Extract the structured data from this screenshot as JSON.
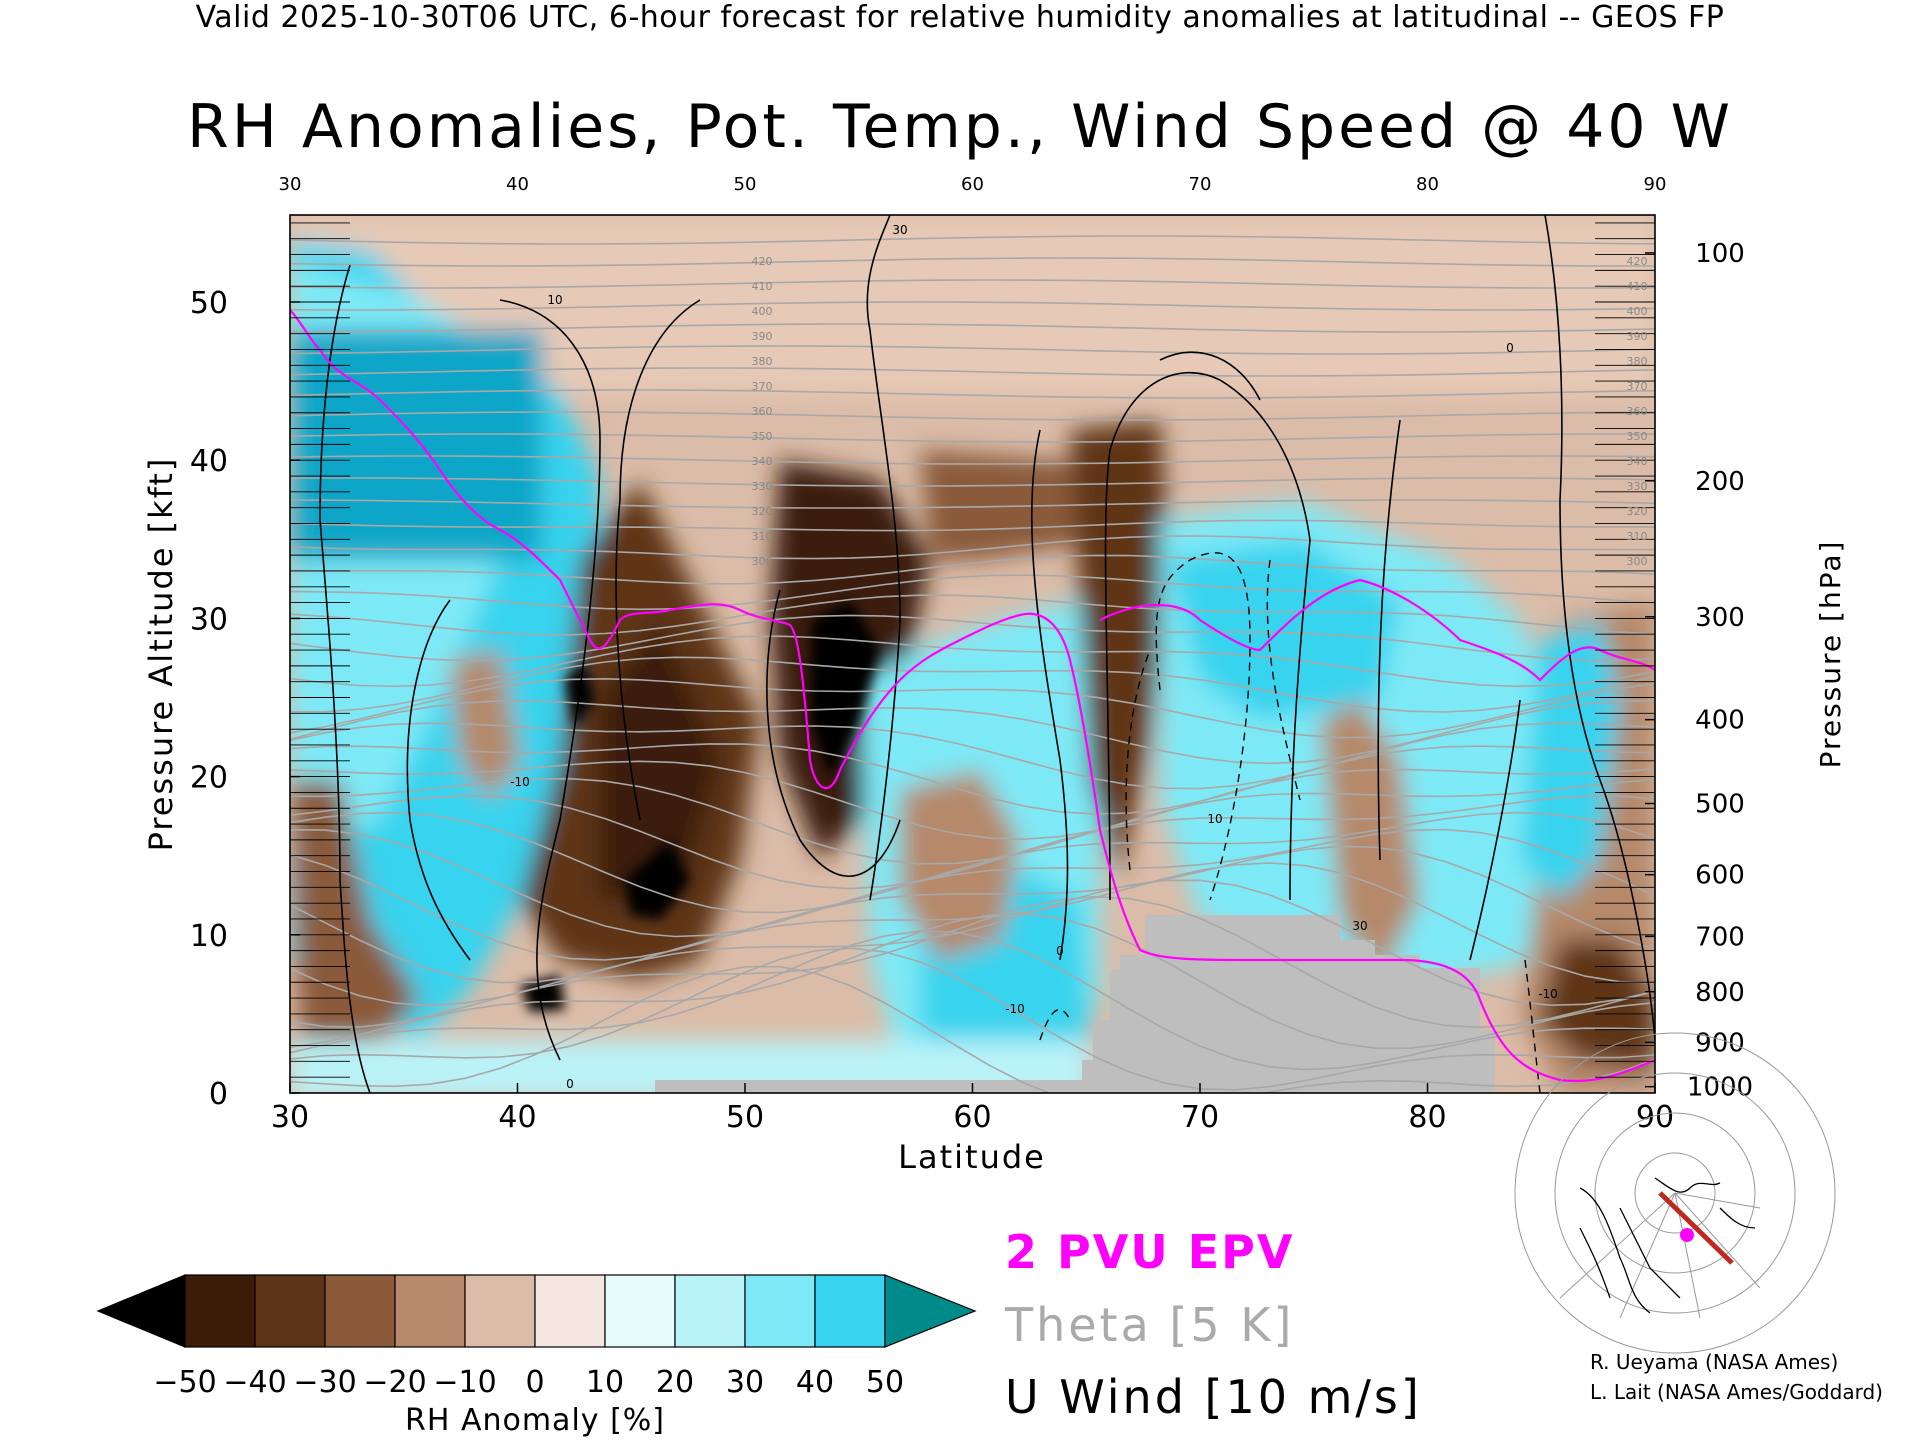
{
  "header": "Valid 2025-10-30T06 UTC, 6-hour forecast for relative humidity anomalies at latitudinal -- GEOS FP",
  "chart_data": {
    "type": "heatmap",
    "title": "RH Anomalies, Pot. Temp., Wind Speed @ 40 W",
    "xlabel": "Latitude",
    "ylabel_left": "Pressure Altitude [kft]",
    "ylabel_right": "Pressure [hPa]",
    "xlim": [
      30,
      90
    ],
    "ylim_kft": [
      0,
      55.5
    ],
    "x_ticks": [
      30,
      40,
      50,
      60,
      70,
      80,
      90
    ],
    "x_ticks_top": [
      30,
      40,
      50,
      60,
      70,
      80,
      90
    ],
    "y_ticks_left": [
      0,
      10,
      20,
      30,
      40,
      50
    ],
    "y_ticks_right": [
      {
        "label": "100",
        "kft": 53.1
      },
      {
        "label": "200",
        "kft": 38.7
      },
      {
        "label": "300",
        "kft": 30.1
      },
      {
        "label": "400",
        "kft": 23.6
      },
      {
        "label": "500",
        "kft": 18.3
      },
      {
        "label": "600",
        "kft": 13.8
      },
      {
        "label": "700",
        "kft": 9.9
      },
      {
        "label": "800",
        "kft": 6.4
      },
      {
        "label": "900",
        "kft": 3.2
      },
      {
        "label": "1000",
        "kft": 0.4
      }
    ],
    "colorbar": {
      "label": "RH Anomaly [%]",
      "ticks": [
        "−50",
        "−40",
        "−30",
        "−20",
        "−10",
        "0",
        "10",
        "20",
        "30",
        "40",
        "50"
      ],
      "colors": [
        "#000000",
        "#3a1c08",
        "#5e3418",
        "#8a5a3a",
        "#b5896a",
        "#dbbca8",
        "#f2e6df",
        "#e6fbfc",
        "#b9f3f8",
        "#7ee9f6",
        "#38d3ee",
        "#0ea6c8",
        "#008b8b"
      ]
    },
    "legend": {
      "epv": "2 PVU EPV",
      "theta": "Theta [5 K]",
      "uwind": "U Wind [10 m/s]",
      "placement": "bottom-center"
    },
    "theta_contour_labels": [
      "420",
      "410",
      "400",
      "390",
      "380",
      "370",
      "360",
      "350",
      "340",
      "330",
      "320",
      "310",
      "300"
    ],
    "wind_contour_labels": [
      "-10",
      "0",
      "10",
      "30"
    ]
  },
  "credits": [
    "R. Ueyama (NASA Ames)",
    "L. Lait (NASA Ames/Goddard)"
  ]
}
